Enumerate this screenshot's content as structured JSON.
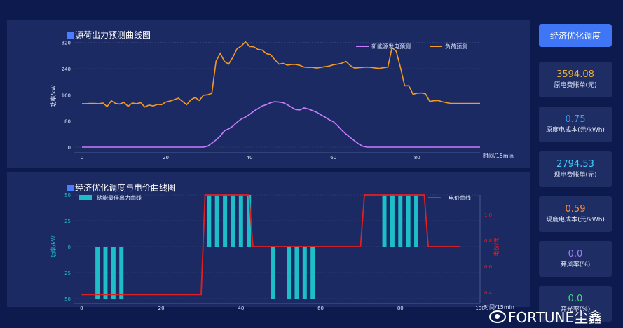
{
  "top_chart": {
    "title": "源荷出力预测曲线图",
    "ylabel": "功率/kW",
    "xlabel": "时间/15min",
    "y_ticks": [
      "0",
      "80",
      "160",
      "240",
      "320"
    ],
    "x_ticks": [
      "0",
      "20",
      "40",
      "60",
      "80"
    ],
    "legend": [
      "新能源发电预测",
      "负荷预测"
    ]
  },
  "bottom_chart": {
    "title": "经济优化调度与电价曲线图",
    "ylabel_left": "功率/kW",
    "ylabel_right": "电价/元",
    "xlabel": "时间/15min",
    "y_ticks_left": [
      "-50",
      "-25",
      "0",
      "25",
      "50"
    ],
    "y_ticks_right": [
      "0.4",
      "0.6",
      "0.8",
      "1.0"
    ],
    "x_ticks": [
      "0",
      "20",
      "40",
      "60",
      "80",
      "100"
    ],
    "legend": [
      "储能最佳出力曲线",
      "电价曲线"
    ]
  },
  "optimize_button": "经济优化调度",
  "stats": [
    {
      "value": "3594.08",
      "label": "原电费账单(元)",
      "color": "#f0b33a"
    },
    {
      "value": "0.75",
      "label": "原度电成本(元/kWh)",
      "color": "#3aa3ff"
    },
    {
      "value": "2794.53",
      "label": "现电费账单(元)",
      "color": "#3ad0ff"
    },
    {
      "value": "0.59",
      "label": "现度电成本(元/kWh)",
      "color": "#ff8c3a"
    },
    {
      "value": "0.0",
      "label": "弃风率(%)",
      "color": "#a57cff"
    },
    {
      "value": "0.0",
      "label": "弃光率(%)",
      "color": "#3ee07a"
    }
  ],
  "watermark": "FORTUNE尘鑫",
  "chart_data": [
    {
      "type": "line",
      "x": [
        0,
        1,
        2,
        3,
        4,
        5,
        6,
        7,
        8,
        9,
        10,
        11,
        12,
        13,
        14,
        15,
        16,
        17,
        18,
        19,
        20,
        21,
        22,
        23,
        24,
        25,
        26,
        27,
        28,
        29,
        30,
        31,
        32,
        33,
        34,
        35,
        36,
        37,
        38,
        39,
        40,
        41,
        42,
        43,
        44,
        45,
        46,
        47,
        48,
        49,
        50,
        51,
        52,
        53,
        54,
        55,
        56,
        57,
        58,
        59,
        60,
        61,
        62,
        63,
        64,
        65,
        66,
        67,
        68,
        69,
        70,
        71,
        72,
        73,
        74,
        75,
        76,
        77,
        78,
        79,
        80,
        81,
        82,
        83,
        84,
        85,
        86,
        87,
        88,
        89,
        90,
        91,
        92,
        93,
        94,
        95
      ],
      "series": [
        {
          "name": "新能源发电预测",
          "color": "#c77dff",
          "values": [
            0,
            0,
            0,
            0,
            0,
            0,
            0,
            0,
            0,
            0,
            0,
            0,
            0,
            0,
            0,
            0,
            0,
            0,
            0,
            0,
            0,
            0,
            0,
            0,
            0,
            0,
            0,
            0,
            0,
            0,
            3,
            12,
            22,
            34,
            50,
            56,
            64,
            76,
            86,
            92,
            100,
            110,
            118,
            126,
            130,
            136,
            139,
            138,
            136,
            130,
            122,
            115,
            114,
            120,
            117,
            112,
            107,
            99,
            92,
            84,
            78,
            66,
            52,
            40,
            30,
            20,
            10,
            3,
            0,
            0,
            0,
            0,
            0,
            0,
            0,
            0,
            0,
            0,
            0,
            0,
            0,
            0,
            0,
            0,
            0,
            0,
            0,
            0,
            0,
            0,
            0,
            0,
            0,
            0,
            0,
            0
          ]
        },
        {
          "name": "负荷预测",
          "color": "#f59a23",
          "values": [
            133,
            133,
            134,
            134,
            133,
            135,
            124,
            142,
            134,
            132,
            137,
            125,
            135,
            133,
            136,
            123,
            129,
            126,
            131,
            130,
            138,
            141,
            145,
            150,
            140,
            130,
            145,
            152,
            143,
            159,
            160,
            165,
            263,
            287,
            262,
            254,
            275,
            301,
            309,
            322,
            308,
            307,
            299,
            297,
            286,
            283,
            268,
            254,
            256,
            251,
            253,
            253,
            250,
            245,
            244,
            244,
            242,
            244,
            246,
            248,
            252,
            254,
            257,
            262,
            250,
            242,
            243,
            244,
            245,
            244,
            242,
            241,
            243,
            245,
            305,
            293,
            244,
            188,
            188,
            162,
            165,
            166,
            163,
            140,
            142,
            143,
            139,
            136,
            134,
            134,
            134,
            134,
            134,
            134,
            134,
            134
          ]
        }
      ],
      "title": "源荷出力预测曲线图",
      "xlabel": "时间/15min",
      "ylabel": "功率/kW",
      "ylim": [
        0,
        330
      ],
      "xlim": [
        -2,
        95
      ],
      "grid": true,
      "legend_position": "top-right"
    },
    {
      "type": "bar",
      "x": [
        0,
        1,
        2,
        3,
        4,
        5,
        6,
        7,
        8,
        9,
        10,
        11,
        12,
        13,
        14,
        15,
        16,
        17,
        18,
        19,
        20,
        21,
        22,
        23,
        24,
        25,
        26,
        27,
        28,
        29,
        30,
        31,
        32,
        33,
        34,
        35,
        36,
        37,
        38,
        39,
        40,
        41,
        42,
        43,
        44,
        45,
        46,
        47,
        48,
        49,
        50,
        51,
        52,
        53,
        54,
        55,
        56,
        57,
        58,
        59,
        60,
        61,
        62,
        63,
        64,
        65,
        66,
        67,
        68,
        69,
        70,
        71,
        72,
        73,
        74,
        75,
        76,
        77,
        78,
        79,
        80,
        81,
        82,
        83,
        84,
        85,
        86,
        87,
        88,
        89,
        90,
        91,
        92,
        93,
        94,
        95
      ],
      "series": [
        {
          "name": "储能最佳出力曲线",
          "color": "#1ebec9",
          "values": [
            0,
            0,
            0,
            0,
            -50,
            0,
            -50,
            0,
            -50,
            0,
            -50,
            0,
            0,
            0,
            0,
            0,
            0,
            0,
            0,
            0,
            0,
            0,
            0,
            0,
            0,
            0,
            0,
            0,
            0,
            0,
            0,
            0,
            50,
            0,
            50,
            0,
            50,
            0,
            50,
            0,
            50,
            0,
            50,
            0,
            0,
            0,
            0,
            0,
            -50,
            0,
            0,
            0,
            -50,
            0,
            -50,
            0,
            -50,
            0,
            -50,
            0,
            0,
            0,
            0,
            0,
            0,
            0,
            0,
            0,
            0,
            0,
            0,
            0,
            0,
            0,
            0,
            0,
            50,
            0,
            50,
            0,
            50,
            0,
            50,
            0,
            50,
            0,
            0,
            0,
            0,
            0,
            0,
            0,
            0,
            0,
            0,
            0
          ]
        },
        {
          "name": "电价曲线",
          "color": "#e02020",
          "values": [
            0.38,
            0.38,
            0.38,
            0.38,
            0.38,
            0.38,
            0.38,
            0.38,
            0.38,
            0.38,
            0.38,
            0.38,
            0.38,
            0.38,
            0.38,
            0.38,
            0.38,
            0.38,
            0.38,
            0.38,
            0.38,
            0.38,
            0.38,
            0.38,
            0.38,
            0.38,
            0.38,
            0.38,
            0.38,
            0.38,
            0.38,
            1.15,
            1.15,
            1.15,
            1.15,
            1.15,
            1.15,
            1.15,
            1.15,
            1.15,
            1.15,
            1.15,
            1.15,
            0.75,
            0.75,
            0.75,
            0.75,
            0.75,
            0.75,
            0.75,
            0.75,
            0.75,
            0.75,
            0.75,
            0.75,
            0.75,
            0.75,
            0.75,
            0.75,
            0.75,
            0.75,
            0.75,
            0.75,
            0.75,
            0.75,
            0.75,
            0.75,
            0.75,
            0.75,
            0.75,
            0.75,
            1.15,
            1.15,
            1.15,
            1.15,
            1.15,
            1.15,
            1.15,
            1.15,
            1.15,
            1.15,
            1.15,
            1.15,
            1.15,
            1.15,
            1.15,
            1.15,
            0.75,
            0.75,
            0.75,
            0.75,
            0.75,
            0.75,
            0.75,
            0.75,
            0.75
          ]
        }
      ],
      "title": "经济优化调度与电价曲线图",
      "xlabel": "时间/15min",
      "ylabel": "功率/kW",
      "ylabel_right": "电价/元",
      "ylim": [
        -50,
        50
      ],
      "ylim_right": [
        0.35,
        1.15
      ],
      "xlim": [
        -2,
        100
      ],
      "grid": true,
      "legend_position": "top"
    }
  ]
}
